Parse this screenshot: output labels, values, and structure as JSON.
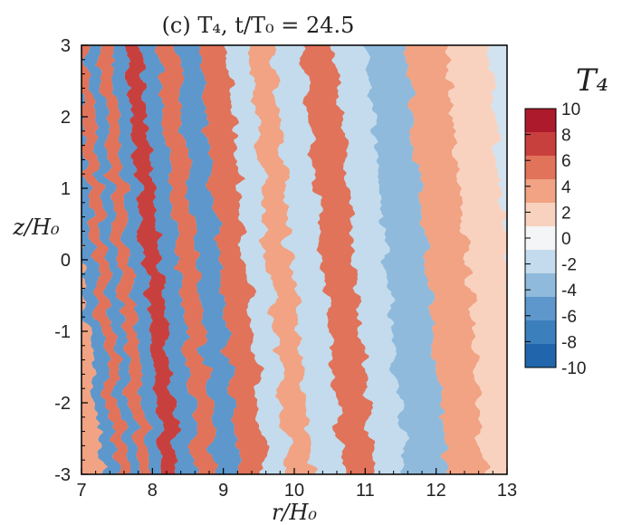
{
  "chart_data": {
    "type": "heatmap",
    "title": "(c) T₄,  t/T₀ = 24.5",
    "xlabel": "r/H₀",
    "ylabel": "z/H₀",
    "xlim": [
      7,
      13
    ],
    "ylim": [
      -3,
      3
    ],
    "xticks": [
      "7",
      "8",
      "9",
      "10",
      "11",
      "12",
      "13"
    ],
    "yticks": [
      "-3",
      "-2",
      "-1",
      "0",
      "1",
      "2",
      "3"
    ],
    "colorbar": {
      "title": "T₄",
      "min": -10,
      "max": 10,
      "levels": [
        -10,
        -8,
        -6,
        -4,
        -2,
        0,
        2,
        4,
        6,
        8,
        10
      ],
      "tick_labels": [
        "10",
        "8",
        "6",
        "4",
        "2",
        "0",
        "-2",
        "-4",
        "-6",
        "-8",
        "-10"
      ],
      "colors": [
        "#2166ac",
        "#3c7fbd",
        "#5d97cc",
        "#8fbadc",
        "#c3dbec",
        "#f4f5f6",
        "#f9d2bf",
        "#f1a383",
        "#e0735a",
        "#c8403d",
        "#ac1a2b"
      ]
    },
    "bands": [
      {
        "r": 7.12,
        "value": 4
      },
      {
        "r": 7.3,
        "value": -6
      },
      {
        "r": 7.48,
        "value": 5
      },
      {
        "r": 7.62,
        "value": -6
      },
      {
        "r": 7.8,
        "value": 6
      },
      {
        "r": 7.97,
        "value": -7
      },
      {
        "r": 8.2,
        "value": 7
      },
      {
        "r": 8.42,
        "value": -6
      },
      {
        "r": 8.7,
        "value": 6
      },
      {
        "r": 8.95,
        "value": -6
      },
      {
        "r": 9.35,
        "value": 5
      },
      {
        "r": 9.7,
        "value": -2
      },
      {
        "r": 10.0,
        "value": 3
      },
      {
        "r": 10.35,
        "value": -2
      },
      {
        "r": 10.85,
        "value": 5
      },
      {
        "r": 11.25,
        "value": -3
      },
      {
        "r": 11.75,
        "value": -4
      },
      {
        "r": 12.4,
        "value": 4
      },
      {
        "r": 12.85,
        "value": 1
      }
    ]
  }
}
